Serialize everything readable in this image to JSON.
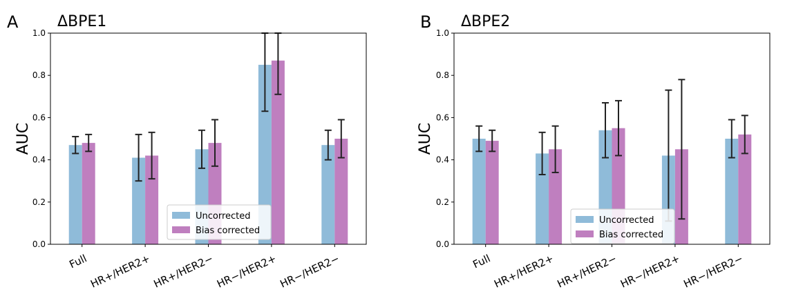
{
  "chart_data": [
    {
      "type": "bar",
      "panel_label": "A",
      "title": "ΔBPE1",
      "xlabel": "",
      "ylabel": "AUC",
      "ylim": [
        0,
        1.0
      ],
      "yticks": [
        "0.0",
        "0.2",
        "0.4",
        "0.6",
        "0.8",
        "1.0"
      ],
      "categories": [
        "Full",
        "HR+/HER2+",
        "HR+/HER2−",
        "HR−/HER2+",
        "HR−/HER2−"
      ],
      "series": [
        {
          "name": "Uncorrected",
          "color": "#8fbbd9",
          "values": [
            0.47,
            0.41,
            0.45,
            0.85,
            0.47
          ],
          "err_low": [
            0.43,
            0.3,
            0.36,
            0.63,
            0.4
          ],
          "err_high": [
            0.51,
            0.52,
            0.54,
            1.0,
            0.54
          ]
        },
        {
          "name": "Bias corrected",
          "color": "#bf7fbf",
          "values": [
            0.48,
            0.42,
            0.48,
            0.87,
            0.5
          ],
          "err_low": [
            0.44,
            0.31,
            0.37,
            0.71,
            0.41
          ],
          "err_high": [
            0.52,
            0.53,
            0.59,
            1.0,
            0.59
          ]
        }
      ],
      "grid": false,
      "legend_position": "lower-center"
    },
    {
      "type": "bar",
      "panel_label": "B",
      "title": "ΔBPE2",
      "xlabel": "",
      "ylabel": "AUC",
      "ylim": [
        0,
        1.0
      ],
      "yticks": [
        "0.0",
        "0.2",
        "0.4",
        "0.6",
        "0.8",
        "1.0"
      ],
      "categories": [
        "Full",
        "HR+/HER2+",
        "HR+/HER2−",
        "HR−/HER2+",
        "HR−/HER2−"
      ],
      "series": [
        {
          "name": "Uncorrected",
          "color": "#8fbbd9",
          "values": [
            0.5,
            0.43,
            0.54,
            0.42,
            0.5
          ],
          "err_low": [
            0.44,
            0.33,
            0.41,
            0.11,
            0.41
          ],
          "err_high": [
            0.56,
            0.53,
            0.67,
            0.73,
            0.59
          ]
        },
        {
          "name": "Bias corrected",
          "color": "#bf7fbf",
          "values": [
            0.49,
            0.45,
            0.55,
            0.45,
            0.52
          ],
          "err_low": [
            0.44,
            0.34,
            0.42,
            0.12,
            0.43
          ],
          "err_high": [
            0.54,
            0.56,
            0.68,
            0.78,
            0.61
          ]
        }
      ],
      "grid": false,
      "legend_position": "lower-center"
    }
  ]
}
